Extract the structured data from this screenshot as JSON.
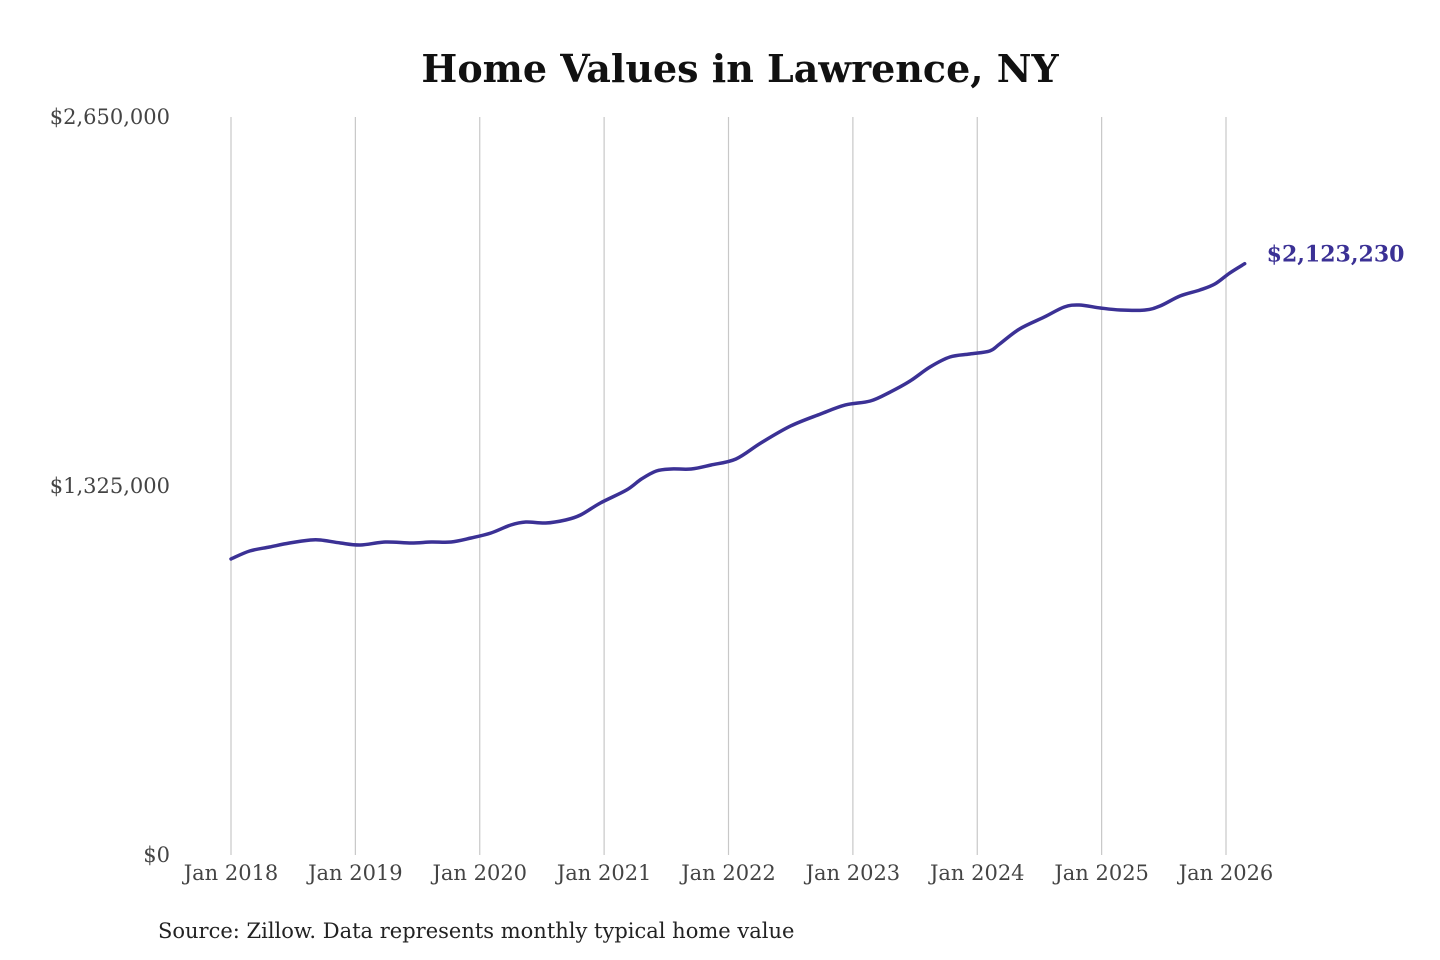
{
  "chart_data": {
    "type": "line",
    "title": "Home Values in Lawrence, NY",
    "xlabel": "",
    "ylabel": "",
    "source": "Source: Zillow. Data represents monthly typical home value",
    "ylim": [
      0,
      2650000
    ],
    "xlim": [
      2018.0,
      2026.15
    ],
    "y_ticks": [
      {
        "value": 0,
        "label": "$0"
      },
      {
        "value": 1325000,
        "label": "$1,325,000"
      },
      {
        "value": 2650000,
        "label": "$2,650,000"
      }
    ],
    "x_ticks": [
      {
        "value": 2018,
        "label": "Jan 2018"
      },
      {
        "value": 2019,
        "label": "Jan 2019"
      },
      {
        "value": 2020,
        "label": "Jan 2020"
      },
      {
        "value": 2021,
        "label": "Jan 2021"
      },
      {
        "value": 2022,
        "label": "Jan 2022"
      },
      {
        "value": 2023,
        "label": "Jan 2023"
      },
      {
        "value": 2024,
        "label": "Jan 2024"
      },
      {
        "value": 2025,
        "label": "Jan 2025"
      },
      {
        "value": 2026,
        "label": "Jan 2026"
      }
    ],
    "grid": "vertical",
    "line_color": "#3b3195",
    "end_label": "$2,123,230",
    "series": [
      {
        "name": "Typical home value",
        "x": [
          2018.0,
          2018.15,
          2018.31,
          2018.47,
          2018.64,
          2018.72,
          2018.88,
          2019.04,
          2019.24,
          2019.45,
          2019.61,
          2019.77,
          2019.93,
          2020.09,
          2020.25,
          2020.37,
          2020.53,
          2020.69,
          2020.81,
          2020.97,
          2021.18,
          2021.3,
          2021.42,
          2021.54,
          2021.7,
          2021.86,
          2022.06,
          2022.26,
          2022.5,
          2022.74,
          2022.94,
          2023.14,
          2023.3,
          2023.46,
          2023.62,
          2023.78,
          2023.94,
          2024.1,
          2024.18,
          2024.34,
          2024.54,
          2024.7,
          2024.82,
          2024.99,
          2025.15,
          2025.35,
          2025.47,
          2025.63,
          2025.79,
          2025.91,
          2026.03,
          2026.15
        ],
        "values": [
          1063000,
          1091600,
          1106000,
          1120300,
          1131100,
          1131100,
          1120300,
          1113200,
          1123900,
          1120300,
          1123900,
          1123900,
          1138300,
          1156200,
          1185000,
          1195700,
          1192100,
          1202900,
          1220900,
          1264000,
          1310600,
          1350100,
          1378900,
          1386100,
          1386100,
          1400400,
          1422000,
          1479400,
          1540500,
          1583500,
          1615900,
          1630200,
          1662500,
          1702000,
          1752300,
          1788200,
          1799000,
          1809800,
          1834900,
          1888800,
          1931900,
          1967800,
          1974900,
          1964200,
          1957000,
          1957000,
          1971400,
          2007300,
          2028800,
          2050300,
          2089800,
          2123230
        ]
      }
    ]
  }
}
